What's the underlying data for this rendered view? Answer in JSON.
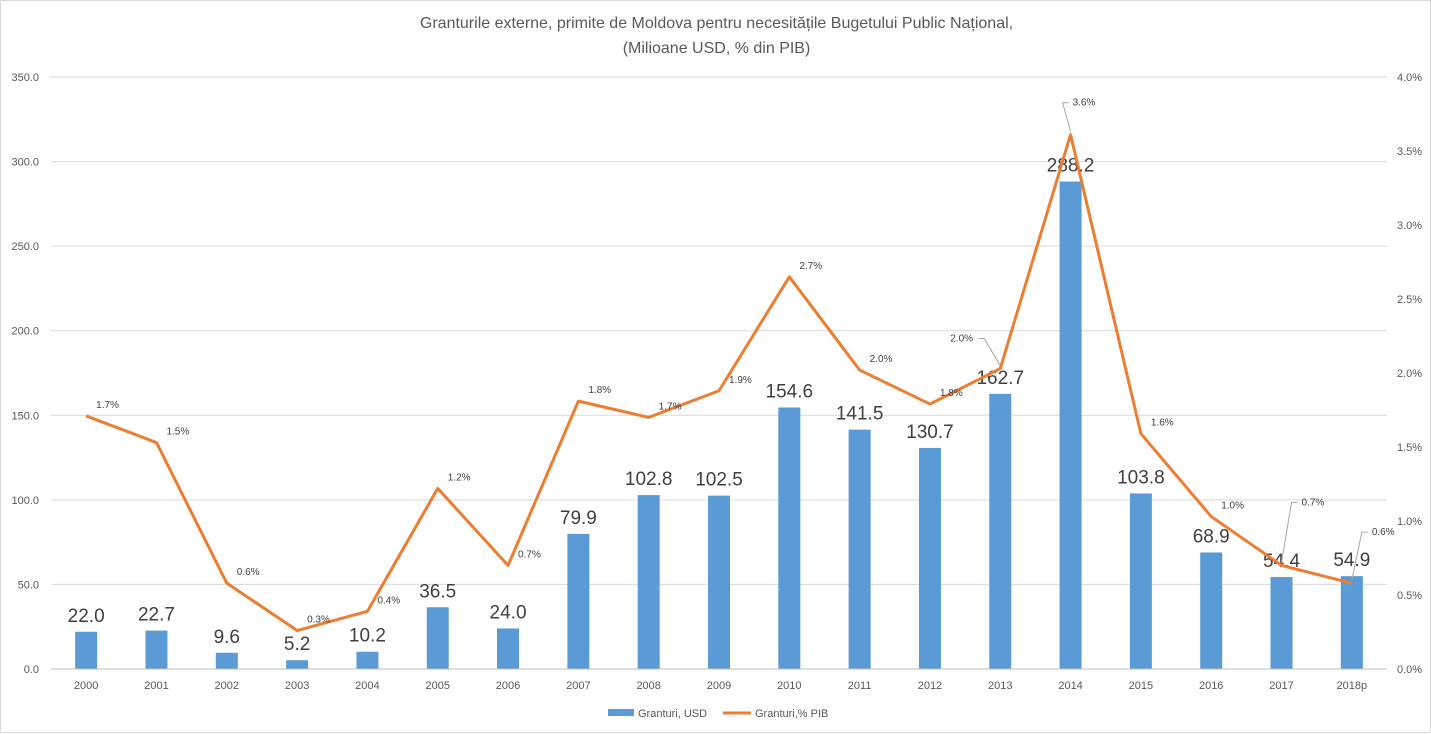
{
  "chart_data": {
    "type": "bar",
    "title": "Granturile externe, primite de Moldova pentru necesitățile Bugetului Public Național,",
    "subtitle": "(Milioane USD, % din PIB)",
    "categories": [
      "2000",
      "2001",
      "2002",
      "2003",
      "2004",
      "2005",
      "2006",
      "2007",
      "2008",
      "2009",
      "2010",
      "2011",
      "2012",
      "2013",
      "2014",
      "2015",
      "2016",
      "2017",
      "2018p"
    ],
    "series": [
      {
        "name": "Granturi, USD",
        "type": "bar",
        "axis": "left",
        "color": "#5b9bd5",
        "values": [
          22.0,
          22.7,
          9.6,
          5.2,
          10.2,
          36.5,
          24.0,
          79.9,
          102.8,
          102.5,
          154.6,
          141.5,
          130.7,
          162.7,
          288.2,
          103.8,
          68.9,
          54.4,
          54.9
        ],
        "labels": [
          "22.0",
          "22.7",
          "9.6",
          "5.2",
          "10.2",
          "36.5",
          "24.0",
          "79.9",
          "102.8",
          "102.5",
          "154.6",
          "141.5",
          "130.7",
          "162.7",
          "288.2",
          "103.8",
          "68.9",
          "54.4",
          "54.9"
        ]
      },
      {
        "name": "Granturi,% PIB",
        "type": "line",
        "axis": "right",
        "color": "#ed7d31",
        "values": [
          1.71,
          1.53,
          0.58,
          0.26,
          0.39,
          1.22,
          0.7,
          1.81,
          1.7,
          1.88,
          2.65,
          2.02,
          1.79,
          2.03,
          3.61,
          1.59,
          1.03,
          0.7,
          0.58
        ],
        "labels": [
          "1.7%",
          "1.5%",
          "0.6%",
          "0.3%",
          "0.4%",
          "1.2%",
          "0.7%",
          "1.8%",
          "1.7%",
          "1.9%",
          "2.7%",
          "2.0%",
          "1.8%",
          "2.0%",
          "3.6%",
          "1.6%",
          "1.0%",
          "0.7%",
          "0.6%"
        ]
      }
    ],
    "y_left": {
      "ylim": [
        0,
        350
      ],
      "ticks": [
        "0.0",
        "50.0",
        "100.0",
        "150.0",
        "200.0",
        "250.0",
        "300.0",
        "350.0"
      ]
    },
    "y_right": {
      "ylim": [
        0,
        4
      ],
      "ticks": [
        "0.0%",
        "0.5%",
        "1.0%",
        "1.5%",
        "2.0%",
        "2.5%",
        "3.0%",
        "3.5%",
        "4.0%"
      ]
    },
    "grid": true,
    "legend": "bottom-center"
  }
}
